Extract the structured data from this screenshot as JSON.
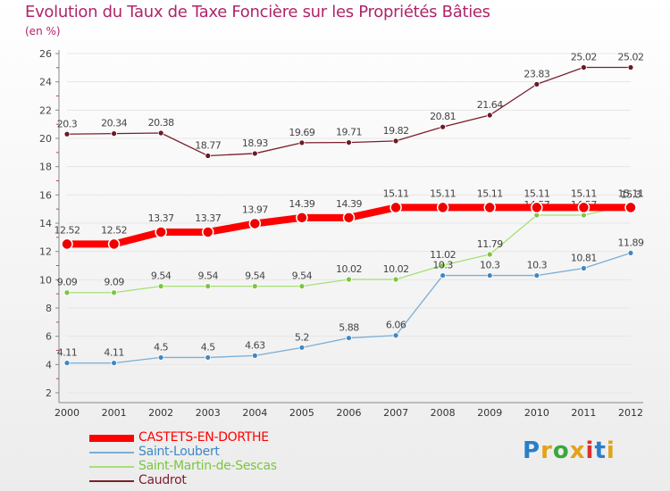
{
  "title": "Evolution du Taux de Taxe Foncière sur les Propriétés Bâties",
  "subtitle": "(en %)",
  "logo": {
    "text": "Proxiti",
    "colors": [
      "#2a7ec8",
      "#e3a21a",
      "#3aa83a",
      "#e3a21a",
      "#d93030",
      "#2a7ec8",
      "#e3a21a"
    ]
  },
  "colors": {
    "title": "#b0246a",
    "axis": "#888888",
    "grid": "#e6e6e6"
  },
  "chart_data": {
    "type": "line",
    "x": [
      2000,
      2001,
      2002,
      2003,
      2004,
      2005,
      2006,
      2007,
      2008,
      2009,
      2010,
      2011,
      2012
    ],
    "ylim": [
      2,
      26
    ],
    "yticks": [
      2,
      4,
      6,
      8,
      10,
      12,
      14,
      16,
      18,
      20,
      22,
      24,
      26
    ],
    "grid": true,
    "legend_position": "bottom-left",
    "series": [
      {
        "name": "Caudrot",
        "color": "#7a1f2b",
        "point": "#6b1a24",
        "width": 1.3,
        "radius": 3,
        "values": [
          20.3,
          20.34,
          20.38,
          18.77,
          18.93,
          19.69,
          19.71,
          19.82,
          20.81,
          21.64,
          23.83,
          25.02,
          25.02
        ],
        "labels": [
          "20.3",
          "20.34",
          "20.38",
          "18.77",
          "18.93",
          "19.69",
          "19.71",
          "19.82",
          "20.81",
          "21.64",
          "23.83",
          "25.02",
          "25.02"
        ]
      },
      {
        "name": "Saint-Martin-de-Sescas",
        "color": "#a6e074",
        "point": "#7cc542",
        "width": 1.3,
        "radius": 3,
        "values": [
          9.09,
          9.09,
          9.54,
          9.54,
          9.54,
          9.54,
          10.02,
          10.02,
          11.02,
          11.79,
          14.57,
          14.57,
          15.3
        ],
        "labels": [
          "9.09",
          "9.09",
          "9.54",
          "9.54",
          "9.54",
          "9.54",
          "10.02",
          "10.02",
          "11.02",
          "11.79",
          "14.57",
          "14.57",
          "15.3"
        ]
      },
      {
        "name": "Saint-Loubert",
        "color": "#7aaed6",
        "point": "#3f87c4",
        "width": 1.3,
        "radius": 3,
        "values": [
          4.11,
          4.11,
          4.5,
          4.5,
          4.63,
          5.2,
          5.88,
          6.06,
          10.3,
          10.3,
          10.3,
          10.81,
          11.89
        ],
        "labels": [
          "4.11",
          "4.11",
          "4.5",
          "4.5",
          "4.63",
          "5.2",
          "5.88",
          "6.06",
          "10.3",
          "10.3",
          "10.3",
          "10.81",
          "11.89"
        ]
      },
      {
        "name": "CASTETS-EN-DORTHE",
        "color": "#ff0000",
        "point": "#ee0000",
        "width": 8,
        "radius": 6,
        "values": [
          12.52,
          12.52,
          13.37,
          13.37,
          13.97,
          14.39,
          14.39,
          15.11,
          15.11,
          15.11,
          15.11,
          15.11,
          15.11
        ],
        "labels": [
          "12.52",
          "12.52",
          "13.37",
          "13.37",
          "13.97",
          "14.39",
          "14.39",
          "15.11",
          "15.11",
          "15.11",
          "15.11",
          "15.11",
          "15.11"
        ]
      }
    ]
  },
  "legend": [
    {
      "name": "CASTETS-EN-DORTHE",
      "color": "#ff0000",
      "thickness": 8
    },
    {
      "name": "Saint-Loubert",
      "color": "#7aaed6",
      "thickness": 2
    },
    {
      "name": "Saint-Martin-de-Sescas",
      "color": "#a6e074",
      "thickness": 2
    },
    {
      "name": "Caudrot",
      "color": "#7a1f2b",
      "thickness": 2
    }
  ]
}
